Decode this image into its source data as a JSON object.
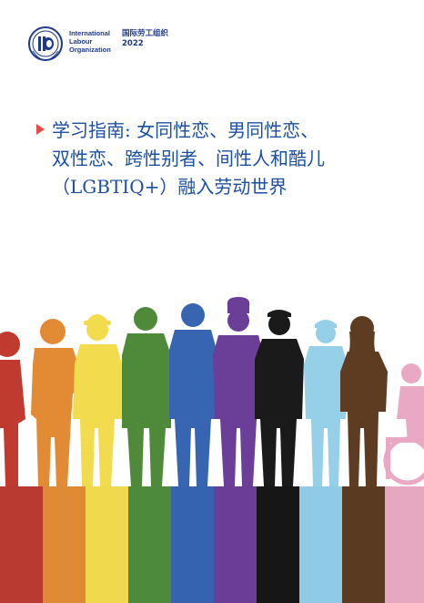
{
  "organization": {
    "name_en_lines": [
      "International",
      "Labour",
      "Organization"
    ],
    "name_zh": "国际劳工组织",
    "year": "2022"
  },
  "title_lines": [
    "学习指南: 女同性恋、男同性恋、",
    "双性恋、跨性别者、间性人和酷儿",
    "（LGBTIQ+）融入劳动世界"
  ],
  "colors": {
    "brand_blue": "#1e3a8a",
    "title_blue": "#1d4fa0",
    "bullet_red": "#e54b4b",
    "stripes": [
      "#b93a30",
      "#df8a35",
      "#f0d94c",
      "#4e8a3b",
      "#3563b0",
      "#6c3d97",
      "#161616",
      "#8fcbe6",
      "#5b3a22",
      "#e6a7c1"
    ],
    "figures": [
      "#c03a2f",
      "#e38b34",
      "#f2dc4e",
      "#4f8a3a",
      "#3865b2",
      "#6b3e98",
      "#1a1a1a",
      "#95cfe8",
      "#5e3c22",
      "#e9a9c4"
    ]
  },
  "illustration": {
    "description_icon": "diverse-workers-silhouettes",
    "figure_roles": [
      "worker-woman-icon",
      "worker-carrying-box-icon",
      "construction-worker-helmet-icon",
      "worker-apron-icon",
      "office-worker-icon",
      "chef-icon",
      "police-officer-icon",
      "nurse-cap-icon",
      "worker-long-hair-icon",
      "wheelchair-user-icon"
    ]
  }
}
